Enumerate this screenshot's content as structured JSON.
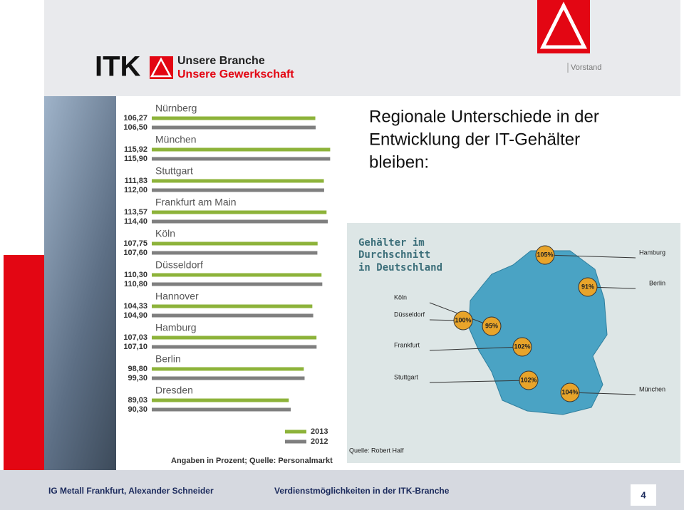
{
  "header": {
    "logo_text": "ITK",
    "line1": "Unsere Branche",
    "line2": "Unsere Gewerkschaft",
    "org": "Vorstand"
  },
  "title_lines": [
    "Regionale Unterschiede in der",
    "Entwicklung der IT-Gehälter",
    "bleiben:"
  ],
  "chart_data": {
    "type": "bar",
    "orientation": "horizontal",
    "categories": [
      "Nürnberg",
      "München",
      "Stuttgart",
      "Frankfurt am Main",
      "Köln",
      "Düsseldorf",
      "Hannover",
      "Hamburg",
      "Berlin",
      "Dresden"
    ],
    "series": [
      {
        "name": "2013",
        "color": "#8db33a",
        "values": [
          106.27,
          115.92,
          111.83,
          113.57,
          107.75,
          110.3,
          104.33,
          107.03,
          98.8,
          89.03
        ],
        "value_labels": [
          "106,27",
          "115,92",
          "111,83",
          "113,57",
          "107,75",
          "110,30",
          "104,33",
          "107,03",
          "98,80",
          "89,03"
        ]
      },
      {
        "name": "2012",
        "color": "#7f7f7f",
        "values": [
          106.5,
          115.9,
          112.0,
          114.4,
          107.6,
          110.8,
          104.9,
          107.1,
          99.3,
          90.3
        ],
        "value_labels": [
          "106,50",
          "115,90",
          "112,00",
          "114,40",
          "107,60",
          "110,80",
          "104,90",
          "107,10",
          "99,30",
          "90,30"
        ]
      }
    ],
    "note": "Angaben in Prozent; Quelle: Personalmarkt"
  },
  "map": {
    "title_lines": [
      "Gehälter im",
      "Durchschnitt",
      "in Deutschland"
    ],
    "cities": [
      {
        "name": "Hamburg",
        "share": "105%"
      },
      {
        "name": "Berlin",
        "share": "91%"
      },
      {
        "name": "Köln",
        "share": "95%"
      },
      {
        "name": "Düsseldorf",
        "share": "100%"
      },
      {
        "name": "Frankfurt",
        "share": "102%"
      },
      {
        "name": "Stuttgart",
        "share": "102%"
      },
      {
        "name": "München",
        "share": "104%"
      }
    ],
    "source": "Quelle: Robert Half"
  },
  "footer": {
    "left": "IG Metall Frankfurt, Alexander Schneider",
    "center": "Verdienstmöglichkeiten in der ITK-Branche",
    "page": "4"
  }
}
